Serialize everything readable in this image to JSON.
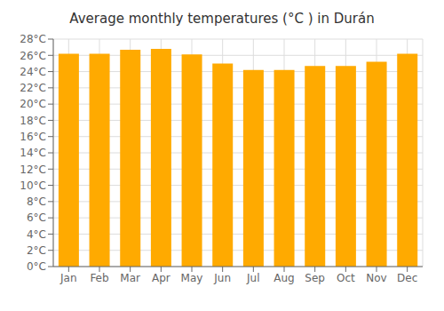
{
  "chart_data": {
    "type": "bar",
    "title": "Average monthly temperatures (°C ) in Durán",
    "categories": [
      "Jan",
      "Feb",
      "Mar",
      "Apr",
      "May",
      "Jun",
      "Jul",
      "Aug",
      "Sep",
      "Oct",
      "Nov",
      "Dec"
    ],
    "values": [
      26.2,
      26.2,
      26.7,
      26.8,
      26.1,
      25.0,
      24.2,
      24.2,
      24.7,
      24.7,
      25.2,
      26.2
    ],
    "color": "#FFAA00",
    "ylim": [
      0,
      28
    ],
    "yticks": [
      {
        "value": 0,
        "label": "0°C"
      },
      {
        "value": 2,
        "label": "2°C"
      },
      {
        "value": 4,
        "label": "4°C"
      },
      {
        "value": 6,
        "label": "6°C"
      },
      {
        "value": 8,
        "label": "8°C"
      },
      {
        "value": 10,
        "label": "10°C"
      },
      {
        "value": 12,
        "label": "12°C"
      },
      {
        "value": 14,
        "label": "14°C"
      },
      {
        "value": 16,
        "label": "16°C"
      },
      {
        "value": 18,
        "label": "18°C"
      },
      {
        "value": 20,
        "label": "20°C"
      },
      {
        "value": 22,
        "label": "22°C"
      },
      {
        "value": 24,
        "label": "24°C"
      },
      {
        "value": 26,
        "label": "26°C"
      },
      {
        "value": 28,
        "label": "28°C"
      }
    ],
    "grid": true
  }
}
